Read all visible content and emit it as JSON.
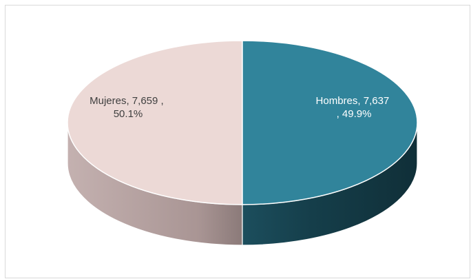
{
  "chart_data": {
    "type": "pie",
    "style": "3d",
    "title": "",
    "legend": "none",
    "slices": [
      {
        "name": "Mujeres",
        "value": 7659,
        "percent": 50.1,
        "color": "#ecd9d6",
        "side_color": "#b9a4a3",
        "label_line1": "Mujeres,  7,659 ,",
        "label_line2": "50.1%",
        "label_color": "#404040"
      },
      {
        "name": "Hombres",
        "value": 7637,
        "percent": 49.9,
        "color": "#31849b",
        "side_color": "#1b4957",
        "label_line1": "Hombres,  7,637",
        "label_line2": ", 49.9%",
        "label_color": "#ffffff"
      }
    ]
  }
}
